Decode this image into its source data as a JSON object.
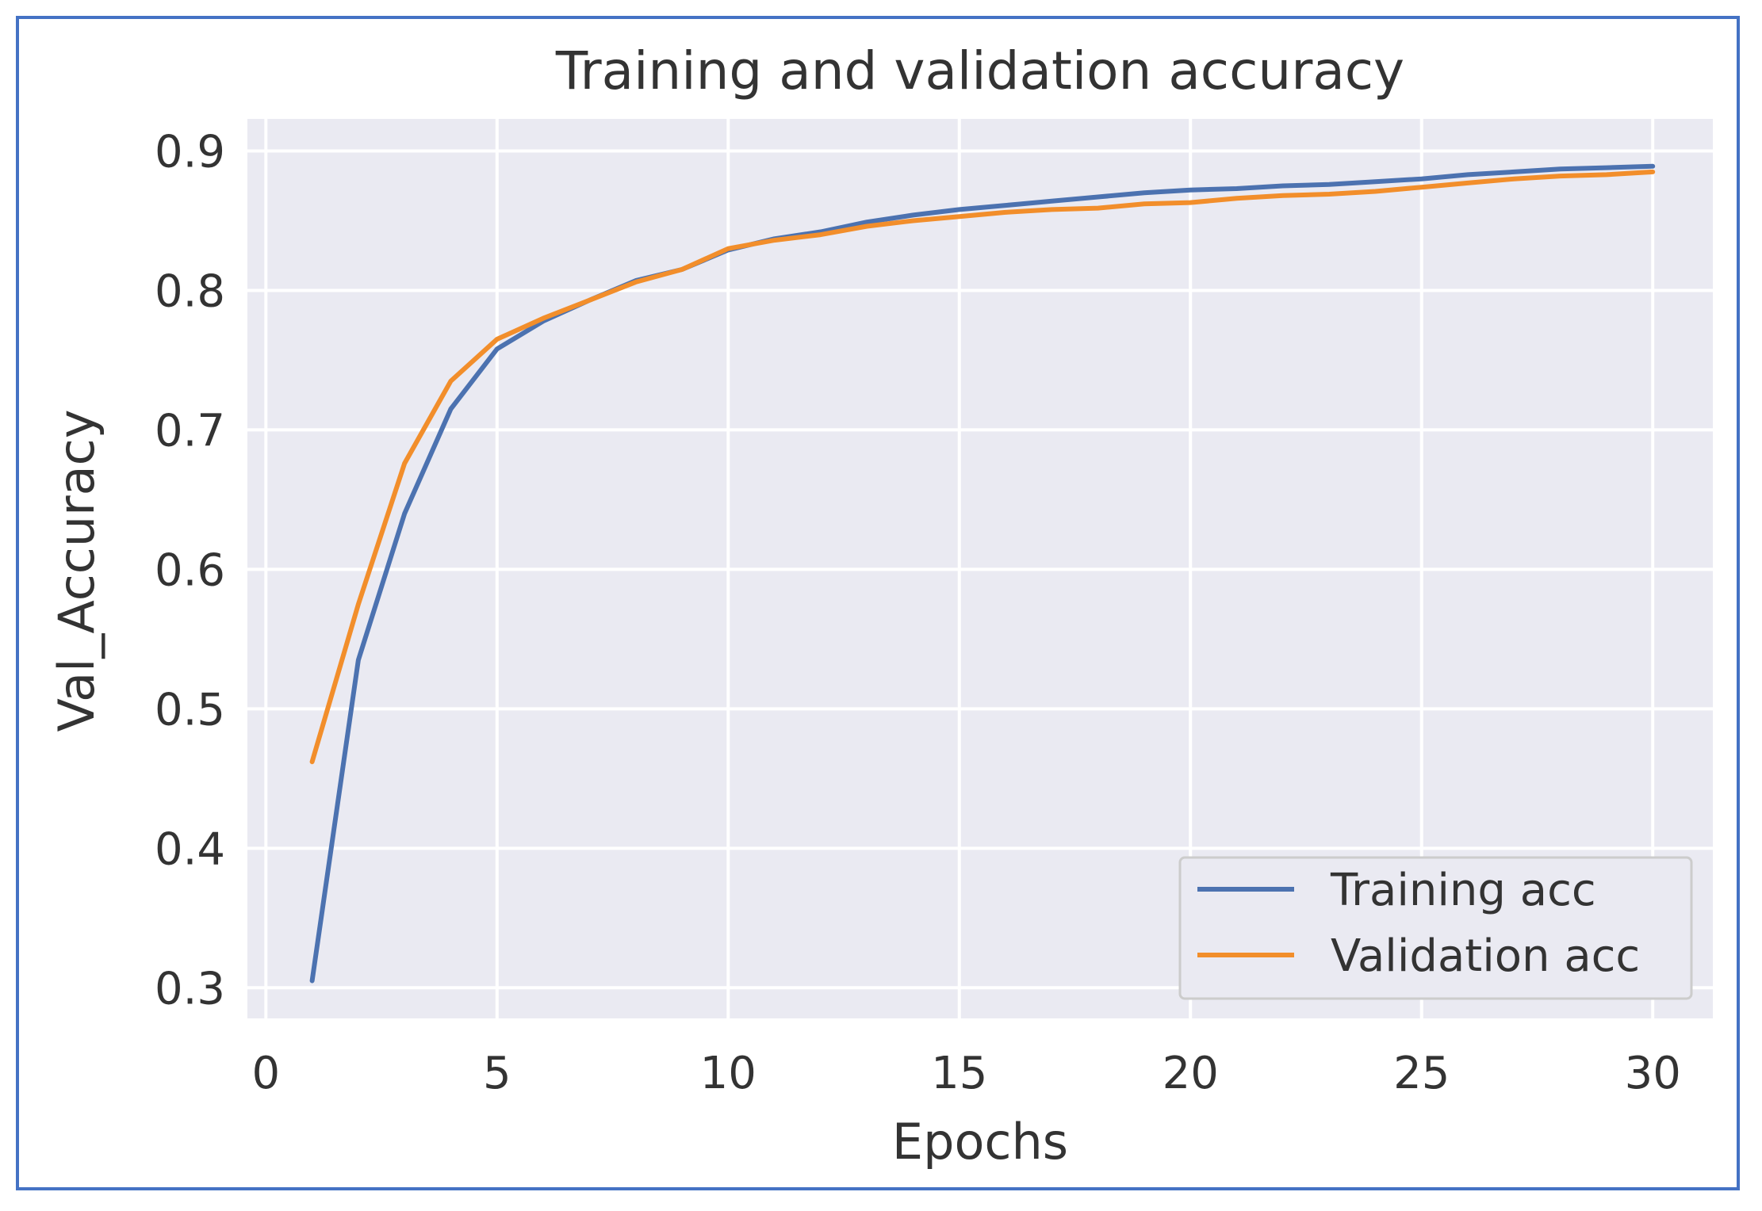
{
  "chart_data": {
    "type": "line",
    "title": "Training and validation accuracy",
    "xlabel": "Epochs",
    "ylabel": "Val_Accuracy",
    "xlim": [
      -0.4,
      31.3
    ],
    "ylim": [
      0.278,
      0.923
    ],
    "xticks": [
      0,
      5,
      10,
      15,
      20,
      25,
      30
    ],
    "yticks": [
      0.3,
      0.4,
      0.5,
      0.6,
      0.7,
      0.8,
      0.9
    ],
    "ytick_labels": [
      "0.3",
      "0.4",
      "0.5",
      "0.6",
      "0.7",
      "0.8",
      "0.9"
    ],
    "grid": true,
    "legend_position": "lower-right",
    "x": [
      1,
      2,
      3,
      4,
      5,
      6,
      7,
      8,
      9,
      10,
      11,
      12,
      13,
      14,
      15,
      16,
      17,
      18,
      19,
      20,
      21,
      22,
      23,
      24,
      25,
      26,
      27,
      28,
      29,
      30
    ],
    "series": [
      {
        "name": "Training acc",
        "color": "#4c72b0",
        "values": [
          0.305,
          0.535,
          0.64,
          0.715,
          0.758,
          0.778,
          0.793,
          0.807,
          0.815,
          0.829,
          0.837,
          0.842,
          0.849,
          0.854,
          0.858,
          0.861,
          0.864,
          0.867,
          0.87,
          0.872,
          0.873,
          0.875,
          0.876,
          0.878,
          0.88,
          0.883,
          0.885,
          0.887,
          0.888,
          0.889
        ]
      },
      {
        "name": "Validation acc",
        "color": "#f28e2b",
        "values": [
          0.462,
          0.575,
          0.676,
          0.735,
          0.765,
          0.78,
          0.793,
          0.806,
          0.815,
          0.83,
          0.836,
          0.84,
          0.846,
          0.85,
          0.853,
          0.856,
          0.858,
          0.859,
          0.862,
          0.863,
          0.866,
          0.868,
          0.869,
          0.871,
          0.874,
          0.877,
          0.88,
          0.882,
          0.883,
          0.885
        ]
      }
    ]
  },
  "colors": {
    "plot_background": "#eaeaf2",
    "grid": "#ffffff",
    "frame_border": "#4472c4"
  }
}
